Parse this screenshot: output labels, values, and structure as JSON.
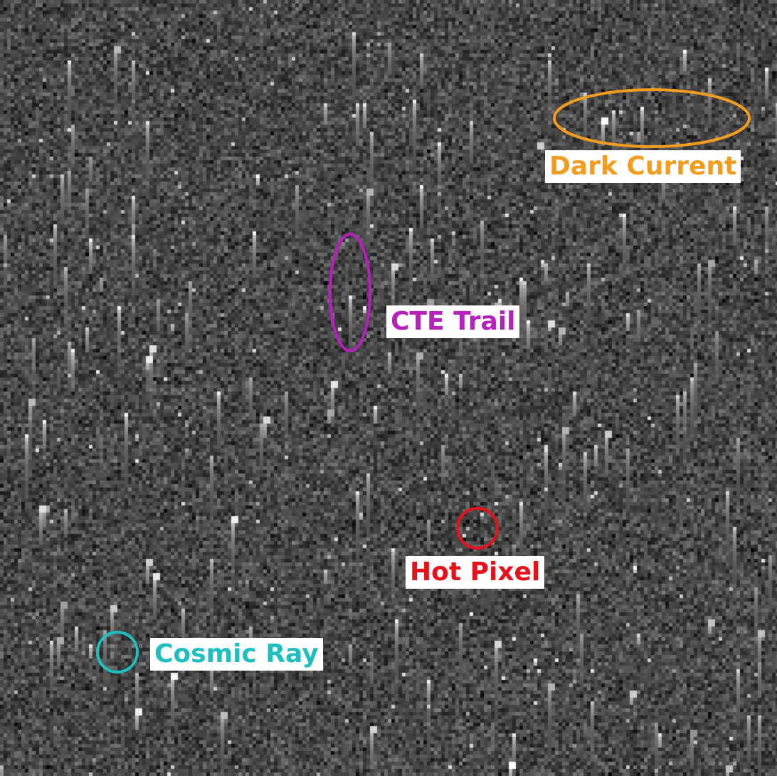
{
  "annotations": [
    {
      "id": "dark-current",
      "text": "Dark Current",
      "color": "#f39c1e",
      "shape": "ellipse"
    },
    {
      "id": "cte-trail",
      "text": "CTE Trail",
      "color": "#b620bd",
      "shape": "ellipse"
    },
    {
      "id": "hot-pixel",
      "text": "Hot Pixel",
      "color": "#e6111b",
      "shape": "circle"
    },
    {
      "id": "cosmic-ray",
      "text": "Cosmic Ray",
      "color": "#1fbfbf",
      "shape": "circle"
    }
  ],
  "image": {
    "kind": "noisy CCD detector frame, greyscale",
    "background_color": "#4a4a4a"
  }
}
